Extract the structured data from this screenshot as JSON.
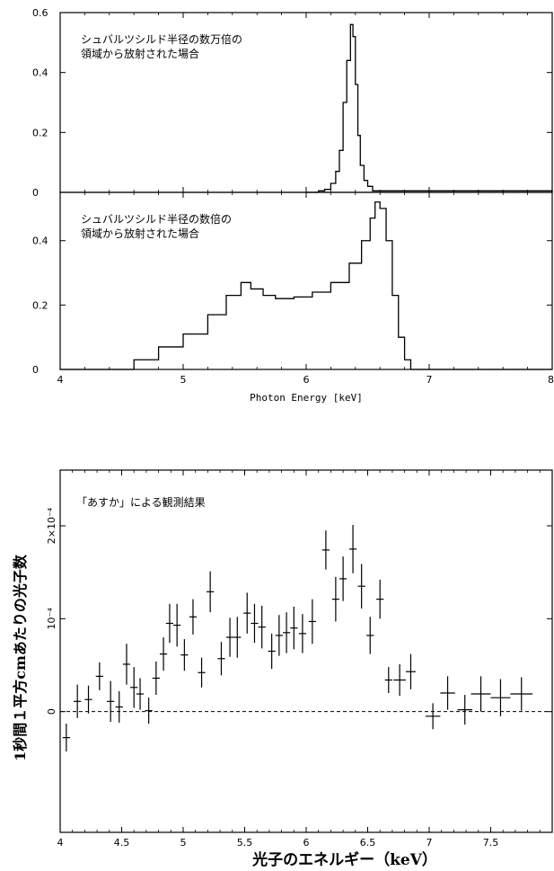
{
  "chart_data": [
    {
      "type": "line",
      "panel": "top",
      "annotation": [
        "シュバルツシルド半径の数万倍の",
        "領域から放射された場合"
      ],
      "xlim": [
        4,
        8
      ],
      "ylim": [
        0,
        0.6
      ],
      "y_ticks": [
        0,
        0.2,
        0.4,
        0.6
      ],
      "y_tick_labels": [
        "0",
        "0.2",
        "0.4",
        "0.6"
      ],
      "step": true,
      "x": [
        6.0,
        6.1,
        6.15,
        6.2,
        6.24,
        6.27,
        6.3,
        6.33,
        6.36,
        6.38,
        6.4,
        6.42,
        6.44,
        6.47,
        6.5,
        6.54,
        8.0
      ],
      "y": [
        0,
        0.005,
        0.01,
        0.03,
        0.07,
        0.14,
        0.3,
        0.44,
        0.56,
        0.52,
        0.36,
        0.19,
        0.09,
        0.04,
        0.02,
        0.005,
        0
      ]
    },
    {
      "type": "line",
      "panel": "middle",
      "annotation": [
        "シュバルツシルド半径の数倍の",
        "領域から放射された場合"
      ],
      "xlim": [
        4,
        8
      ],
      "ylim": [
        0,
        0.55
      ],
      "x_ticks": [
        4,
        5,
        6,
        7,
        8
      ],
      "x_tick_labels": [
        "4",
        "5",
        "6",
        "7",
        "8"
      ],
      "y_ticks": [
        0,
        0.2,
        0.4
      ],
      "y_tick_labels": [
        "0",
        "0.2",
        "0.4"
      ],
      "xlabel": "Photon Energy [keV]",
      "step": true,
      "x": [
        4.0,
        4.45,
        4.6,
        4.8,
        5.0,
        5.2,
        5.35,
        5.47,
        5.55,
        5.65,
        5.75,
        5.9,
        6.05,
        6.2,
        6.35,
        6.45,
        6.52,
        6.56,
        6.6,
        6.65,
        6.7,
        6.75,
        6.8,
        6.85,
        8.0
      ],
      "y": [
        0,
        0,
        0.03,
        0.07,
        0.11,
        0.17,
        0.23,
        0.27,
        0.25,
        0.23,
        0.22,
        0.225,
        0.24,
        0.27,
        0.33,
        0.4,
        0.47,
        0.52,
        0.5,
        0.4,
        0.23,
        0.1,
        0.03,
        0,
        0
      ]
    },
    {
      "type": "scatter",
      "panel": "bottom",
      "annotation": "「あすか」による観測結果",
      "xlim": [
        4,
        8
      ],
      "ylim": [
        -0.00013,
        0.00026
      ],
      "x_ticks": [
        4,
        4.5,
        5,
        5.5,
        6,
        6.5,
        7,
        7.5
      ],
      "x_tick_labels": [
        "4",
        "4.5",
        "5",
        "5.5",
        "6",
        "6.5",
        "7",
        "7.5"
      ],
      "y_ticks": [
        0,
        0.0001,
        0.0002
      ],
      "y_tick_labels": [
        "0",
        "10⁻⁴",
        "2×10⁻⁴"
      ],
      "xlabel": "光子のエネルギー（keV）",
      "ylabel": "1秒間１平方cmあたりの光子数",
      "zero_line": "dashed",
      "points": [
        {
          "x": 4.05,
          "y": -2.8e-05,
          "xerr": 0.03,
          "yerr": 1.5e-05
        },
        {
          "x": 4.14,
          "y": 1.1e-05,
          "xerr": 0.03,
          "yerr": 1.8e-05
        },
        {
          "x": 4.23,
          "y": 1.3e-05,
          "xerr": 0.03,
          "yerr": 1.5e-05
        },
        {
          "x": 4.32,
          "y": 3.8e-05,
          "xerr": 0.03,
          "yerr": 1.5e-05
        },
        {
          "x": 4.41,
          "y": 1.1e-05,
          "xerr": 0.03,
          "yerr": 2.2e-05
        },
        {
          "x": 4.48,
          "y": 5e-06,
          "xerr": 0.03,
          "yerr": 1.7e-05
        },
        {
          "x": 4.54,
          "y": 5.1e-05,
          "xerr": 0.03,
          "yerr": 2.2e-05
        },
        {
          "x": 4.6,
          "y": 2.6e-05,
          "xerr": 0.03,
          "yerr": 2.2e-05
        },
        {
          "x": 4.65,
          "y": 1.9e-05,
          "xerr": 0.03,
          "yerr": 1.7e-05
        },
        {
          "x": 4.72,
          "y": 1e-06,
          "xerr": 0.03,
          "yerr": 1.4e-05
        },
        {
          "x": 4.78,
          "y": 3.6e-05,
          "xerr": 0.03,
          "yerr": 1.8e-05
        },
        {
          "x": 4.84,
          "y": 6.2e-05,
          "xerr": 0.03,
          "yerr": 1.8e-05
        },
        {
          "x": 4.89,
          "y": 9.5e-05,
          "xerr": 0.03,
          "yerr": 2.1e-05
        },
        {
          "x": 4.95,
          "y": 9.3e-05,
          "xerr": 0.03,
          "yerr": 2.3e-05
        },
        {
          "x": 5.01,
          "y": 6.1e-05,
          "xerr": 0.03,
          "yerr": 1.7e-05
        },
        {
          "x": 5.08,
          "y": 0.000102,
          "xerr": 0.03,
          "yerr": 1.9e-05
        },
        {
          "x": 5.15,
          "y": 4.2e-05,
          "xerr": 0.03,
          "yerr": 1.6e-05
        },
        {
          "x": 5.22,
          "y": 0.000129,
          "xerr": 0.03,
          "yerr": 2.2e-05
        },
        {
          "x": 5.31,
          "y": 5.7e-05,
          "xerr": 0.03,
          "yerr": 1.8e-05
        },
        {
          "x": 5.38,
          "y": 8e-05,
          "xerr": 0.03,
          "yerr": 2.1e-05
        },
        {
          "x": 5.44,
          "y": 8e-05,
          "xerr": 0.03,
          "yerr": 2.2e-05
        },
        {
          "x": 5.52,
          "y": 0.000106,
          "xerr": 0.03,
          "yerr": 2.2e-05
        },
        {
          "x": 5.58,
          "y": 9.5e-05,
          "xerr": 0.03,
          "yerr": 2.1e-05
        },
        {
          "x": 5.64,
          "y": 9.1e-05,
          "xerr": 0.03,
          "yerr": 2.3e-05
        },
        {
          "x": 5.72,
          "y": 6.5e-05,
          "xerr": 0.03,
          "yerr": 1.9e-05
        },
        {
          "x": 5.78,
          "y": 8.2e-05,
          "xerr": 0.03,
          "yerr": 2.2e-05
        },
        {
          "x": 5.84,
          "y": 8.5e-05,
          "xerr": 0.03,
          "yerr": 2.2e-05
        },
        {
          "x": 5.9,
          "y": 9e-05,
          "xerr": 0.03,
          "yerr": 2.3e-05
        },
        {
          "x": 5.97,
          "y": 8.4e-05,
          "xerr": 0.03,
          "yerr": 2.1e-05
        },
        {
          "x": 6.05,
          "y": 9.7e-05,
          "xerr": 0.03,
          "yerr": 2.4e-05
        },
        {
          "x": 6.16,
          "y": 0.000174,
          "xerr": 0.03,
          "yerr": 2.1e-05
        },
        {
          "x": 6.24,
          "y": 0.000121,
          "xerr": 0.03,
          "yerr": 2.4e-05
        },
        {
          "x": 6.3,
          "y": 0.000143,
          "xerr": 0.03,
          "yerr": 2.4e-05
        },
        {
          "x": 6.38,
          "y": 0.000175,
          "xerr": 0.03,
          "yerr": 2.6e-05
        },
        {
          "x": 6.45,
          "y": 0.000135,
          "xerr": 0.03,
          "yerr": 2.4e-05
        },
        {
          "x": 6.52,
          "y": 8.2e-05,
          "xerr": 0.03,
          "yerr": 2e-05
        },
        {
          "x": 6.6,
          "y": 0.000121,
          "xerr": 0.03,
          "yerr": 2.1e-05
        },
        {
          "x": 6.67,
          "y": 3.4e-05,
          "xerr": 0.03,
          "yerr": 1.4e-05
        },
        {
          "x": 6.76,
          "y": 3.4e-05,
          "xerr": 0.05,
          "yerr": 1.7e-05
        },
        {
          "x": 6.85,
          "y": 4.3e-05,
          "xerr": 0.04,
          "yerr": 1.9e-05
        },
        {
          "x": 7.03,
          "y": -5e-06,
          "xerr": 0.06,
          "yerr": 1.4e-05
        },
        {
          "x": 7.15,
          "y": 2e-05,
          "xerr": 0.06,
          "yerr": 1.8e-05
        },
        {
          "x": 7.29,
          "y": 2e-06,
          "xerr": 0.06,
          "yerr": 1.6e-05
        },
        {
          "x": 7.42,
          "y": 1.9e-05,
          "xerr": 0.08,
          "yerr": 1.9e-05
        },
        {
          "x": 7.58,
          "y": 1.5e-05,
          "xerr": 0.08,
          "yerr": 2e-05
        },
        {
          "x": 7.75,
          "y": 1.9e-05,
          "xerr": 0.09,
          "yerr": 1.8e-05
        }
      ]
    }
  ]
}
